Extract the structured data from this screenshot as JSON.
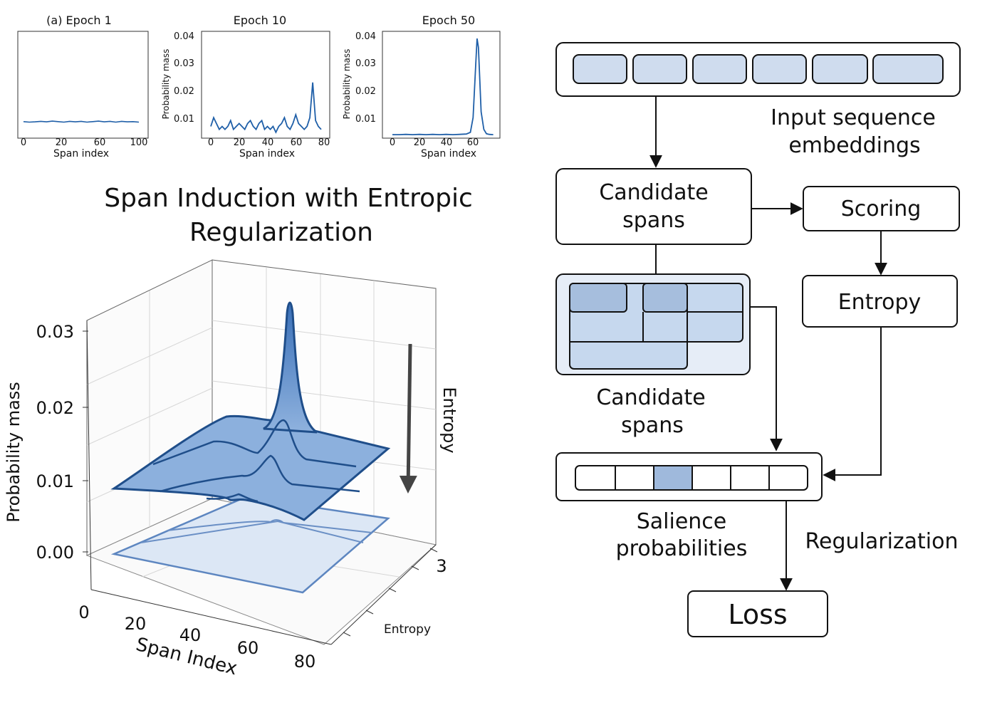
{
  "small_charts": [
    {
      "title": "(a) Epoch 1",
      "ylabel": "",
      "xlabel": "Span index",
      "xticks": [
        "0",
        "20",
        "60",
        "100"
      ],
      "yticks": []
    },
    {
      "title": "Epoch 10",
      "ylabel": "Probability mass",
      "xlabel": "Span index",
      "xticks": [
        "0",
        "20",
        "40",
        "60",
        "80"
      ],
      "yticks": [
        "0.04",
        "0.03",
        "0.02",
        "0.01"
      ]
    },
    {
      "title": "Epoch 50",
      "ylabel": "Probability mass",
      "xlabel": "Span index",
      "xticks": [
        "0",
        "20",
        "40",
        "60",
        "80"
      ],
      "yticks": [
        "0.04",
        "0.03",
        "0.02",
        "0.01"
      ]
    }
  ],
  "surface": {
    "title_line1": "Span Induction with Entropic",
    "title_line2": "Regularization",
    "zlabel": "Probability mass",
    "zticks": [
      "0.03",
      "0.02",
      "0.01",
      "0.00"
    ],
    "xlabel": "Span Index",
    "xticks": [
      "0",
      "20",
      "40",
      "60",
      "80"
    ],
    "ylabel": "Entropy",
    "yticks": [
      "3"
    ],
    "arrow_label": "Entropy"
  },
  "flow": {
    "input_label_line1": "Input sequence",
    "input_label_line2": "embeddings",
    "candidate_box_line1": "Candidate",
    "candidate_box_line2": "spans",
    "scoring": "Scoring",
    "entropy": "Entropy",
    "candidate_label_line1": "Candidate",
    "candidate_label_line2": "spans",
    "salience_line1": "Salience",
    "salience_line2": "probabilities",
    "regularization": "Regularization",
    "loss": "Loss"
  },
  "chart_data": [
    {
      "type": "line",
      "title": "(a) Epoch 1",
      "xlabel": "Span index",
      "ylabel": "",
      "x": [
        0,
        5,
        10,
        15,
        20,
        25,
        30,
        35,
        40,
        45,
        50,
        55,
        60,
        65,
        70,
        75,
        80,
        85,
        90,
        95,
        100
      ],
      "series": [
        {
          "values": [
            0.0065,
            0.0063,
            0.0064,
            0.0066,
            0.0064,
            0.0067,
            0.0065,
            0.0063,
            0.0066,
            0.0064,
            0.0066,
            0.0063,
            0.0065,
            0.0067,
            0.0064,
            0.0066,
            0.0063,
            0.0066,
            0.0064,
            0.0065,
            0.0063
          ]
        }
      ],
      "xlim": [
        0,
        100
      ],
      "ylim": [
        0,
        0.042
      ]
    },
    {
      "type": "line",
      "title": "Epoch 10",
      "xlabel": "Span index",
      "ylabel": "Probability mass",
      "x": [
        0,
        2,
        4,
        6,
        8,
        10,
        12,
        14,
        16,
        18,
        20,
        22,
        24,
        26,
        28,
        30,
        32,
        34,
        36,
        38,
        40,
        42,
        44,
        46,
        48,
        50,
        52,
        54,
        56,
        58,
        60,
        62,
        64,
        66,
        68,
        70,
        72,
        74,
        76,
        78
      ],
      "series": [
        {
          "values": [
            0.009,
            0.012,
            0.01,
            0.008,
            0.009,
            0.008,
            0.009,
            0.011,
            0.008,
            0.009,
            0.01,
            0.009,
            0.008,
            0.01,
            0.011,
            0.009,
            0.008,
            0.01,
            0.011,
            0.008,
            0.009,
            0.008,
            0.009,
            0.007,
            0.009,
            0.01,
            0.012,
            0.009,
            0.008,
            0.01,
            0.013,
            0.01,
            0.009,
            0.008,
            0.009,
            0.012,
            0.024,
            0.011,
            0.009,
            0.008
          ]
        }
      ],
      "xlim": [
        0,
        80
      ],
      "ylim": [
        0.005,
        0.04
      ]
    },
    {
      "type": "line",
      "title": "Epoch 50",
      "xlabel": "Span index",
      "ylabel": "Probability mass",
      "x": [
        0,
        5,
        10,
        15,
        20,
        25,
        30,
        35,
        40,
        45,
        50,
        55,
        58,
        60,
        62,
        63,
        64,
        65,
        66,
        68,
        70,
        72,
        75
      ],
      "series": [
        {
          "values": [
            0.0062,
            0.0062,
            0.0063,
            0.0062,
            0.0063,
            0.0062,
            0.0063,
            0.0062,
            0.0063,
            0.0062,
            0.0063,
            0.0064,
            0.007,
            0.012,
            0.03,
            0.039,
            0.036,
            0.025,
            0.014,
            0.008,
            0.0065,
            0.0063,
            0.0062
          ]
        }
      ],
      "xlim": [
        0,
        80
      ],
      "ylim": [
        0.005,
        0.04
      ]
    }
  ]
}
